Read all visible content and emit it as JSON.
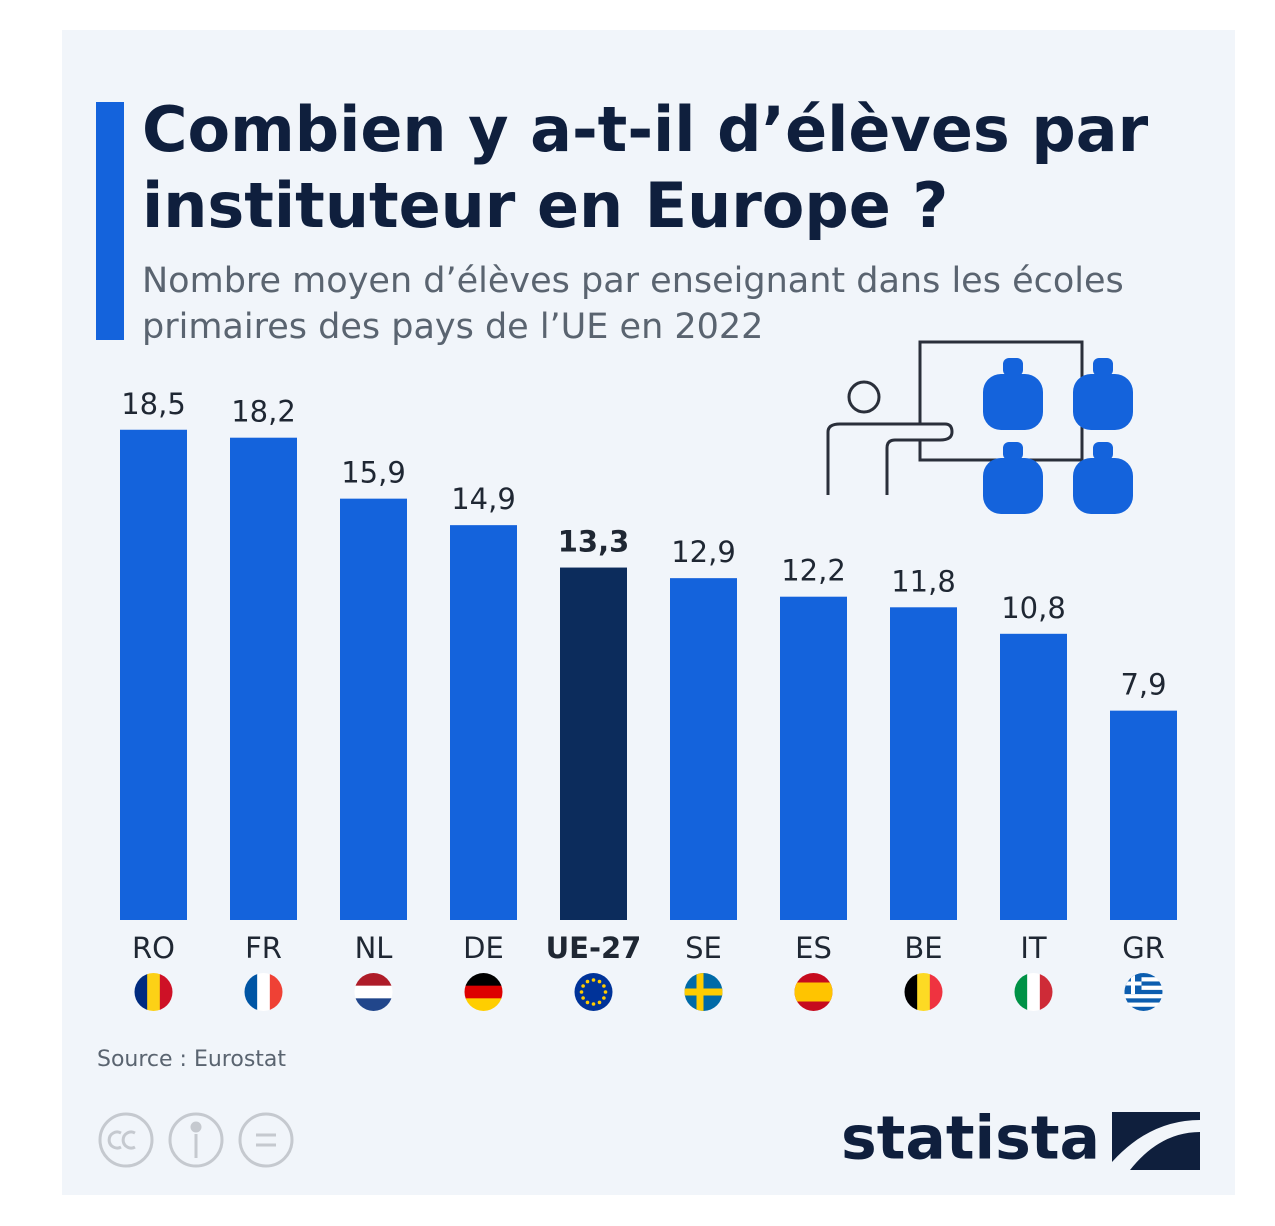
{
  "chart_data": {
    "type": "bar",
    "title": "Combien y a-t-il d’élèves par instituteur en Europe ?",
    "subtitle": "Nombre moyen d’élèves par enseignant dans les écoles primaires des pays de l’UE en 2022",
    "categories": [
      "RO",
      "FR",
      "NL",
      "DE",
      "UE-27",
      "SE",
      "ES",
      "BE",
      "IT",
      "GR"
    ],
    "values": [
      18.5,
      18.2,
      15.9,
      14.9,
      13.3,
      12.9,
      12.2,
      11.8,
      10.8,
      7.9
    ],
    "value_labels": [
      "18,5",
      "18,2",
      "15,9",
      "14,9",
      "13,3",
      "12,9",
      "12,2",
      "11,8",
      "10,8",
      "7,9"
    ],
    "colors": [
      "#1463dc",
      "#1463dc",
      "#1463dc",
      "#1463dc",
      "#0c2c5c",
      "#1463dc",
      "#1463dc",
      "#1463dc",
      "#1463dc",
      "#1463dc"
    ],
    "source": "Source : Eurostat",
    "brand": "statista"
  }
}
